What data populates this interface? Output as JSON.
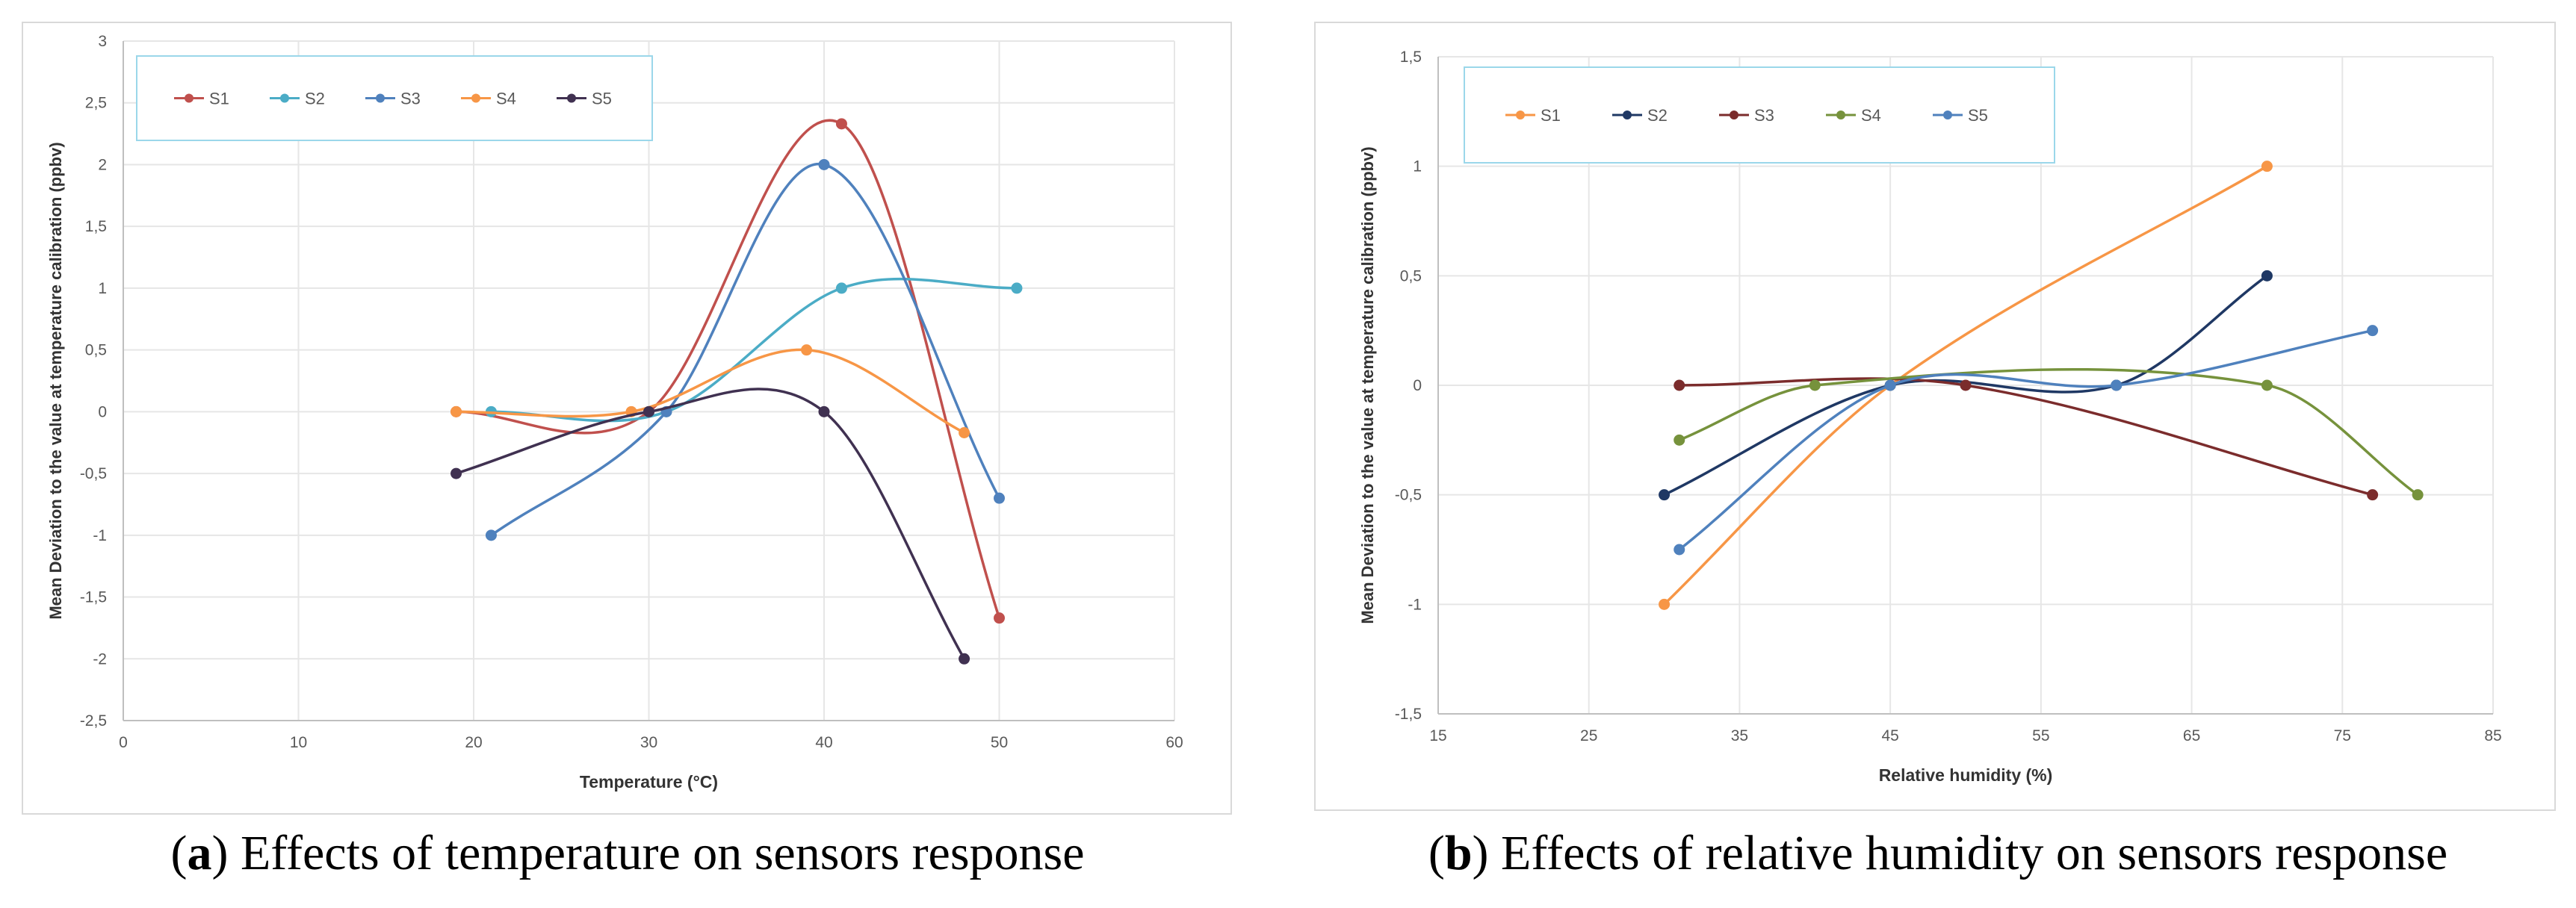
{
  "chart_data": [
    {
      "type": "line",
      "caption_letter": "a",
      "caption_text": "Effects of temperature on sensors response",
      "xlabel": "Temperature (°C)",
      "ylabel": "Mean Deviation to the value at temperature calibration (ppbv)",
      "xlim": [
        0,
        60
      ],
      "ylim": [
        -2.5,
        3
      ],
      "x_ticks": [
        0,
        10,
        20,
        30,
        40,
        50,
        60
      ],
      "y_ticks": [
        -2.5,
        -2,
        -1.5,
        -1,
        -0.5,
        0,
        0.5,
        1,
        1.5,
        2,
        2.5,
        3
      ],
      "x_tick_labels": [
        "0",
        "10",
        "20",
        "30",
        "40",
        "50",
        "60"
      ],
      "y_tick_labels": [
        "-2,5",
        "-2",
        "-1,5",
        "-1",
        "-0,5",
        "0",
        "0,5",
        "1",
        "1,5",
        "2",
        "2,5",
        "3"
      ],
      "grid": true,
      "legend_position": "top-left",
      "series": [
        {
          "name": "S1",
          "color": "#C0504D",
          "x": [
            19,
            30,
            41,
            50
          ],
          "y": [
            0,
            0,
            2.33,
            -1.67
          ]
        },
        {
          "name": "S2",
          "color": "#4BACC6",
          "x": [
            21,
            31,
            41,
            51
          ],
          "y": [
            0,
            0,
            1,
            1
          ]
        },
        {
          "name": "S3",
          "color": "#4F81BD",
          "x": [
            21,
            31,
            40,
            50
          ],
          "y": [
            -1,
            0,
            2,
            -0.7
          ]
        },
        {
          "name": "S4",
          "color": "#F79646",
          "x": [
            19,
            29,
            39,
            48
          ],
          "y": [
            0,
            0,
            0.5,
            -0.17
          ]
        },
        {
          "name": "S5",
          "color": "#403151",
          "x": [
            19,
            30,
            40,
            48
          ],
          "y": [
            -0.5,
            0,
            0,
            -2
          ]
        }
      ]
    },
    {
      "type": "line",
      "caption_letter": "b",
      "caption_text": "Effects of relative humidity on sensors response",
      "xlabel": "Relative humidity (%)",
      "ylabel": "Mean Deviation to the value at temperature calibration (ppbv)",
      "xlim": [
        15,
        85
      ],
      "ylim": [
        -1.5,
        1.5
      ],
      "x_ticks": [
        15,
        25,
        35,
        45,
        55,
        65,
        75,
        85
      ],
      "y_ticks": [
        -1.5,
        -1,
        -0.5,
        0,
        0.5,
        1,
        1.5
      ],
      "x_tick_labels": [
        "15",
        "25",
        "35",
        "45",
        "55",
        "65",
        "75",
        "85"
      ],
      "y_tick_labels": [
        "-1,5",
        "-1",
        "-0,5",
        "0",
        "0,5",
        "1",
        "1,5"
      ],
      "grid": true,
      "legend_position": "top-left",
      "series": [
        {
          "name": "S1",
          "color": "#F79646",
          "x": [
            30,
            45,
            70
          ],
          "y": [
            -1,
            0,
            1
          ]
        },
        {
          "name": "S2",
          "color": "#1F3864",
          "x": [
            30,
            45,
            60,
            70
          ],
          "y": [
            -0.5,
            0,
            0,
            0.5
          ]
        },
        {
          "name": "S3",
          "color": "#7B2C2C",
          "x": [
            31,
            50,
            77
          ],
          "y": [
            0,
            0,
            -0.5
          ]
        },
        {
          "name": "S4",
          "color": "#76923C",
          "x": [
            31,
            40,
            70,
            80
          ],
          "y": [
            -0.25,
            0,
            0,
            -0.5
          ]
        },
        {
          "name": "S5",
          "color": "#4F81BD",
          "x": [
            31,
            45,
            60,
            77
          ],
          "y": [
            -0.75,
            0,
            0,
            0.25
          ]
        }
      ]
    }
  ]
}
